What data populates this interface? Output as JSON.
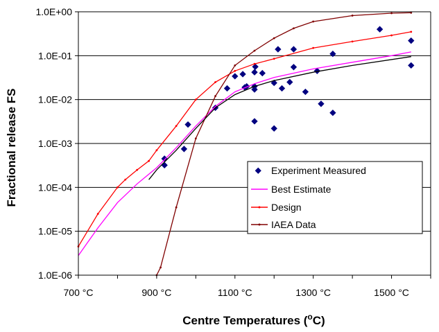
{
  "chart_data": {
    "type": "scatter",
    "xlabel": "Centre Temperatures (",
    "xlabel_sup": "o",
    "xlabel_end": "C)",
    "ylabel": "Fractional release FS",
    "xlim": [
      700,
      1600
    ],
    "ylim": [
      1e-06,
      1
    ],
    "yscale": "log",
    "grid": "horizontal",
    "legend_position": "bottom-right",
    "x_ticks": [
      {
        "value": 700,
        "label": "700 °C"
      },
      {
        "value": 900,
        "label": "900 °C"
      },
      {
        "value": 1100,
        "label": "1100 °C"
      },
      {
        "value": 1300,
        "label": "1300 °C"
      },
      {
        "value": 1500,
        "label": "1500 °C"
      }
    ],
    "y_ticks": [
      {
        "value": 1,
        "label": "1.0E+00"
      },
      {
        "value": 0.1,
        "label": "1.0E-01"
      },
      {
        "value": 0.01,
        "label": "1.0E-02"
      },
      {
        "value": 0.001,
        "label": "1.0E-03"
      },
      {
        "value": 0.0001,
        "label": "1.0E-04"
      },
      {
        "value": 1e-05,
        "label": "1.0E-05"
      },
      {
        "value": 1e-06,
        "label": "1.0E-06"
      }
    ],
    "series": [
      {
        "name": "Experiment Measured",
        "kind": "marker",
        "color": "#000080",
        "points": [
          [
            920,
            0.00045
          ],
          [
            920,
            0.00032
          ],
          [
            970,
            0.00075
          ],
          [
            980,
            0.0027
          ],
          [
            1050,
            0.0065
          ],
          [
            1080,
            0.018
          ],
          [
            1100,
            0.034
          ],
          [
            1120,
            0.038
          ],
          [
            1125,
            0.019
          ],
          [
            1130,
            0.02
          ],
          [
            1150,
            0.042
          ],
          [
            1152,
            0.056
          ],
          [
            1150,
            0.02
          ],
          [
            1150,
            0.017
          ],
          [
            1150,
            0.0032
          ],
          [
            1170,
            0.04
          ],
          [
            1200,
            0.024
          ],
          [
            1200,
            0.0022
          ],
          [
            1210,
            0.14
          ],
          [
            1220,
            0.018
          ],
          [
            1240,
            0.025
          ],
          [
            1250,
            0.14
          ],
          [
            1250,
            0.055
          ],
          [
            1280,
            0.015
          ],
          [
            1310,
            0.045
          ],
          [
            1320,
            0.008
          ],
          [
            1350,
            0.005
          ],
          [
            1350,
            0.11
          ],
          [
            1470,
            0.4
          ],
          [
            1550,
            0.22
          ],
          [
            1550,
            0.06
          ]
        ]
      },
      {
        "name": "Best Estimate",
        "kind": "line",
        "color": "#ff00ff",
        "points": [
          [
            700,
            2.8e-06
          ],
          [
            750,
            1.2e-05
          ],
          [
            800,
            4.5e-05
          ],
          [
            850,
            0.00012
          ],
          [
            900,
            0.00028
          ],
          [
            950,
            0.0008
          ],
          [
            1000,
            0.0025
          ],
          [
            1050,
            0.007
          ],
          [
            1100,
            0.015
          ],
          [
            1150,
            0.023
          ],
          [
            1200,
            0.032
          ],
          [
            1300,
            0.05
          ],
          [
            1400,
            0.071
          ],
          [
            1500,
            0.1
          ],
          [
            1550,
            0.122
          ]
        ]
      },
      {
        "name": "Design",
        "kind": "line",
        "color": "#ff0000",
        "points": [
          [
            700,
            4.5e-06
          ],
          [
            750,
            2.5e-05
          ],
          [
            800,
            0.0001
          ],
          [
            820,
            0.00015
          ],
          [
            850,
            0.00025
          ],
          [
            880,
            0.0004
          ],
          [
            900,
            0.0007
          ],
          [
            950,
            0.0025
          ],
          [
            1000,
            0.01
          ],
          [
            1050,
            0.025
          ],
          [
            1100,
            0.045
          ],
          [
            1150,
            0.065
          ],
          [
            1200,
            0.085
          ],
          [
            1300,
            0.15
          ],
          [
            1400,
            0.21
          ],
          [
            1500,
            0.29
          ],
          [
            1550,
            0.35
          ]
        ]
      },
      {
        "name": "IAEA Data",
        "kind": "line",
        "color": "#800000",
        "points": [
          [
            900,
            1e-06
          ],
          [
            910,
            1.5e-06
          ],
          [
            950,
            3.5e-05
          ],
          [
            1000,
            0.0013
          ],
          [
            1050,
            0.012
          ],
          [
            1100,
            0.06
          ],
          [
            1150,
            0.13
          ],
          [
            1200,
            0.25
          ],
          [
            1250,
            0.42
          ],
          [
            1300,
            0.6
          ],
          [
            1400,
            0.82
          ],
          [
            1500,
            0.93
          ],
          [
            1550,
            0.95
          ]
        ]
      },
      {
        "name": "",
        "kind": "line",
        "color": "#000000",
        "points": [
          [
            880,
            0.00015
          ],
          [
            900,
            0.00025
          ],
          [
            950,
            0.0007
          ],
          [
            1000,
            0.0022
          ],
          [
            1050,
            0.0065
          ],
          [
            1100,
            0.013
          ],
          [
            1150,
            0.02
          ],
          [
            1200,
            0.027
          ],
          [
            1300,
            0.042
          ],
          [
            1400,
            0.06
          ],
          [
            1550,
            0.095
          ]
        ]
      }
    ]
  }
}
